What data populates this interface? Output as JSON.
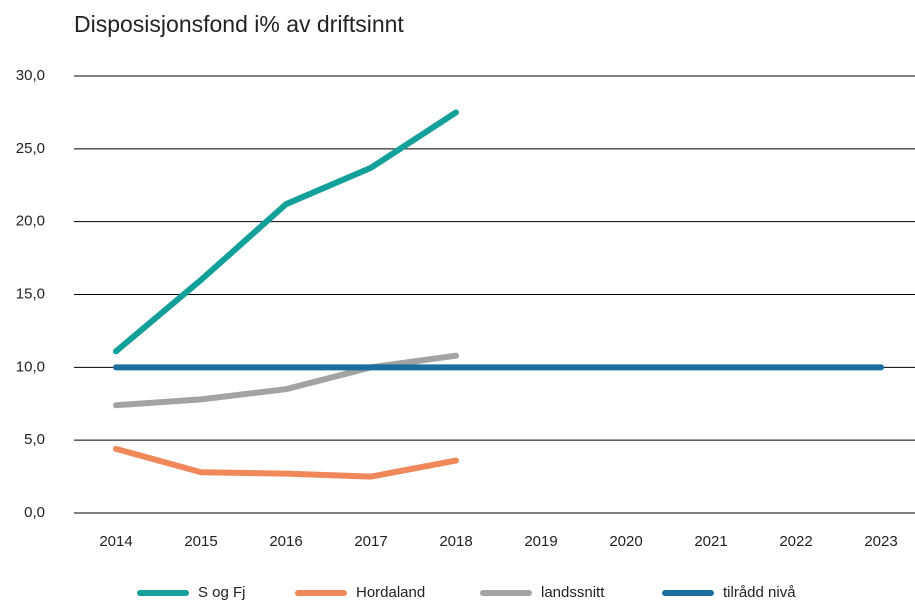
{
  "chart_data": {
    "type": "line",
    "title": "Disposisjonsfond i% av driftsinnt",
    "categories": [
      "2014",
      "2015",
      "2016",
      "2017",
      "2018",
      "2019",
      "2020",
      "2021",
      "2022",
      "2023"
    ],
    "series": [
      {
        "name": "S og Fj",
        "color": "#14a09a",
        "values": [
          11.1,
          16.0,
          21.2,
          23.7,
          27.5,
          null,
          null,
          null,
          null,
          null
        ]
      },
      {
        "name": "Hordaland",
        "color": "#f0885a",
        "values": [
          4.4,
          2.8,
          2.7,
          2.5,
          3.6,
          null,
          null,
          null,
          null,
          null
        ]
      },
      {
        "name": "landssnitt",
        "color": "#a3a3a3",
        "values": [
          7.4,
          7.8,
          8.5,
          10.0,
          10.8,
          null,
          null,
          null,
          null,
          null
        ]
      },
      {
        "name": "tilrådd nivå",
        "color": "#1a6ea0",
        "values": [
          10,
          10,
          10,
          10,
          10,
          10,
          10,
          10,
          10,
          10
        ]
      }
    ],
    "ylim": [
      0,
      30
    ],
    "yticks": [
      {
        "value": 0,
        "label": "0,0"
      },
      {
        "value": 5,
        "label": "5,0"
      },
      {
        "value": 10,
        "label": "10,0"
      },
      {
        "value": 15,
        "label": "15,0"
      },
      {
        "value": 20,
        "label": "20,0"
      },
      {
        "value": 25,
        "label": "25,0"
      },
      {
        "value": 30,
        "label": "30,0"
      }
    ],
    "grid": true,
    "legend": "bottom"
  }
}
